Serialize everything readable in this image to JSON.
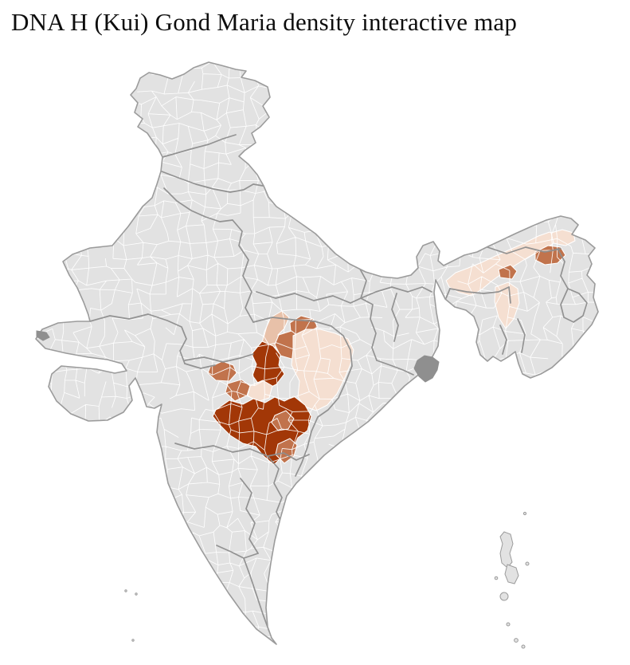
{
  "title": "DNA H (Kui) Gond Maria density interactive map",
  "map": {
    "colors": {
      "background": "#ffffff",
      "land": "#e2e2e2",
      "district_border": "#ffffff",
      "state_border": "#8e8e8e",
      "country_outline": "#9b9b9b",
      "delta_patch": "#8f8f8f"
    },
    "density_palette": {
      "very_low": "#f5dfd1",
      "low": "#e8c1a9",
      "medium": "#c1734c",
      "high": "#a23707"
    },
    "regions": {
      "central-upland-nw": "low",
      "central-upland-ne": "medium",
      "central-upland-east": "medium",
      "central-core-north": "high",
      "central-west-outlier": "medium",
      "central-west-mid": "medium",
      "central-west-pocket": "very_low",
      "central-core-south": "high",
      "central-core-inset": "medium",
      "central-south-tail": "medium",
      "central-east-plain": "very_low",
      "northeast-valley": "very_low",
      "northeast-south-spur": "very_low",
      "northeast-far-east": "very_low",
      "northeast-upper-valley": "medium",
      "northeast-mid-valley": "medium"
    }
  }
}
